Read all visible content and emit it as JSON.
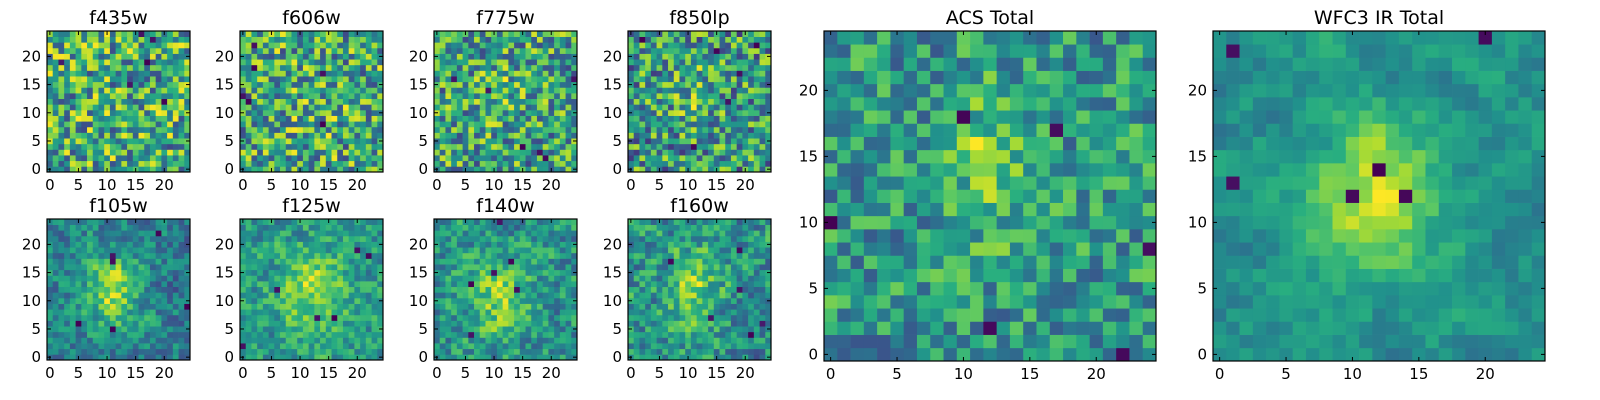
{
  "chart_data": {
    "type": "heatmap",
    "colormap": "viridis",
    "grid_size": [
      25,
      25
    ],
    "panels": [
      {
        "title": "f435w",
        "xticks": [
          0,
          5,
          10,
          15,
          20
        ],
        "yticks": [
          0,
          5,
          10,
          15,
          20
        ],
        "xlim": [
          -0.5,
          24.5
        ],
        "ylim": [
          -0.5,
          24.5
        ],
        "values": null
      },
      {
        "title": "f606w",
        "xticks": [
          0,
          5,
          10,
          15,
          20
        ],
        "yticks": [
          0,
          5,
          10,
          15,
          20
        ],
        "xlim": [
          -0.5,
          24.5
        ],
        "ylim": [
          -0.5,
          24.5
        ],
        "values": null
      },
      {
        "title": "f775w",
        "xticks": [
          0,
          5,
          10,
          15,
          20
        ],
        "yticks": [
          0,
          5,
          10,
          15,
          20
        ],
        "xlim": [
          -0.5,
          24.5
        ],
        "ylim": [
          -0.5,
          24.5
        ],
        "values": null
      },
      {
        "title": "f850lp",
        "xticks": [
          0,
          5,
          10,
          15,
          20
        ],
        "yticks": [
          0,
          5,
          10,
          15,
          20
        ],
        "xlim": [
          -0.5,
          24.5
        ],
        "ylim": [
          -0.5,
          24.5
        ],
        "values": null
      },
      {
        "title": "f105w",
        "xticks": [
          0,
          5,
          10,
          15,
          20
        ],
        "yticks": [
          0,
          5,
          10,
          15,
          20
        ],
        "xlim": [
          -0.5,
          24.5
        ],
        "ylim": [
          -0.5,
          24.5
        ],
        "values": null
      },
      {
        "title": "f125w",
        "xticks": [
          0,
          5,
          10,
          15,
          20
        ],
        "yticks": [
          0,
          5,
          10,
          15,
          20
        ],
        "xlim": [
          -0.5,
          24.5
        ],
        "ylim": [
          -0.5,
          24.5
        ],
        "values": null
      },
      {
        "title": "f140w",
        "xticks": [
          0,
          5,
          10,
          15,
          20
        ],
        "yticks": [
          0,
          5,
          10,
          15,
          20
        ],
        "xlim": [
          -0.5,
          24.5
        ],
        "ylim": [
          -0.5,
          24.5
        ],
        "values": null
      },
      {
        "title": "f160w",
        "xticks": [
          0,
          5,
          10,
          15,
          20
        ],
        "yticks": [
          0,
          5,
          10,
          15,
          20
        ],
        "xlim": [
          -0.5,
          24.5
        ],
        "ylim": [
          -0.5,
          24.5
        ],
        "values": null
      },
      {
        "title": "ACS Total",
        "xticks": [
          0,
          5,
          10,
          15,
          20
        ],
        "yticks": [
          0,
          5,
          10,
          15,
          20
        ],
        "xlim": [
          -0.5,
          24.5
        ],
        "ylim": [
          -0.5,
          24.5
        ],
        "values": null
      },
      {
        "title": "WFC3 IR Total",
        "xticks": [
          0,
          5,
          10,
          15,
          20
        ],
        "yticks": [
          0,
          5,
          10,
          15,
          20
        ],
        "xlim": [
          -0.5,
          24.5
        ],
        "ylim": [
          -0.5,
          24.5
        ],
        "values": null
      }
    ]
  }
}
